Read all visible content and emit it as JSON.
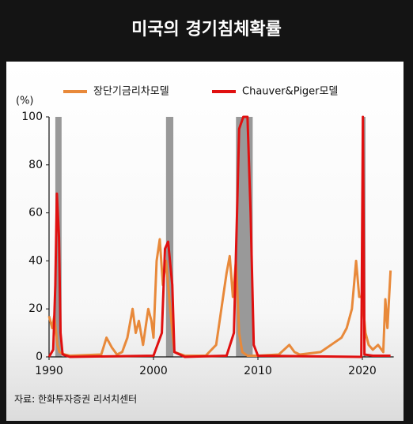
{
  "chart_data": {
    "type": "line",
    "title": "미국의 경기침체확률",
    "y_label": "(%)",
    "source": "자료: 한화투자증권 리서치센터",
    "xlim": [
      1990,
      2023
    ],
    "xticks": [
      1990,
      2000,
      2010,
      2020
    ],
    "ylim": [
      0,
      100
    ],
    "yticks": [
      0,
      20,
      40,
      60,
      80,
      100
    ],
    "grid": false,
    "legend": "top",
    "recession_color": "#999999",
    "recessions": [
      [
        1990.6,
        1991.2
      ],
      [
        2001.2,
        2001.9
      ],
      [
        2007.9,
        2009.5
      ],
      [
        2020.1,
        2020.3
      ]
    ],
    "series": [
      {
        "name": "장단기금리차모델",
        "color": "#e8893a",
        "x": [
          1990,
          1990.3,
          1990.5,
          1990.8,
          1991,
          1991.5,
          1992,
          1995,
          1995.5,
          1996,
          1996.5,
          1997,
          1997.5,
          1998,
          1998.3,
          1998.6,
          1999,
          1999.5,
          1999.8,
          2000,
          2000.3,
          2000.6,
          2000.9,
          2001.2,
          2001.6,
          2002,
          2003,
          2005,
          2006,
          2006.5,
          2007,
          2007.3,
          2007.6,
          2007.9,
          2008.2,
          2008.5,
          2009,
          2010,
          2012,
          2013,
          2013.5,
          2014,
          2016,
          2017,
          2018,
          2018.5,
          2019,
          2019.4,
          2019.7,
          2020,
          2020.3,
          2020.6,
          2021,
          2021.5,
          2022,
          2022.2,
          2022.4,
          2022.7
        ],
        "values": [
          17,
          12,
          17,
          5,
          2,
          1,
          0.5,
          1,
          8,
          4,
          1,
          2,
          8,
          20,
          10,
          15,
          5,
          20,
          15,
          8,
          40,
          49,
          30,
          40,
          20,
          2,
          0.5,
          0.5,
          5,
          20,
          35,
          42,
          25,
          40,
          10,
          2,
          0.5,
          0.5,
          1,
          5,
          2,
          1,
          2,
          5,
          8,
          12,
          20,
          40,
          25,
          25,
          10,
          5,
          3,
          5,
          2,
          24,
          12,
          36
        ]
      },
      {
        "name": "Chauver&Piger모델",
        "color": "#e01010",
        "x": [
          1990,
          1990.4,
          1990.6,
          1990.75,
          1990.95,
          1991.1,
          1991.3,
          1992,
          2000,
          2000.8,
          2001.1,
          2001.4,
          2001.8,
          2002,
          2003,
          2007,
          2007.7,
          2008,
          2008.2,
          2008.6,
          2009,
          2009.3,
          2009.6,
          2010,
          2019.9,
          2020.05,
          2020.2,
          2021,
          2022.7
        ],
        "values": [
          0,
          3,
          30,
          68,
          50,
          10,
          1,
          0,
          0.5,
          10,
          45,
          48,
          30,
          2,
          0,
          0.5,
          10,
          60,
          95,
          100,
          100,
          60,
          5,
          0.5,
          0,
          100,
          1,
          0.5,
          0.5
        ]
      }
    ]
  }
}
